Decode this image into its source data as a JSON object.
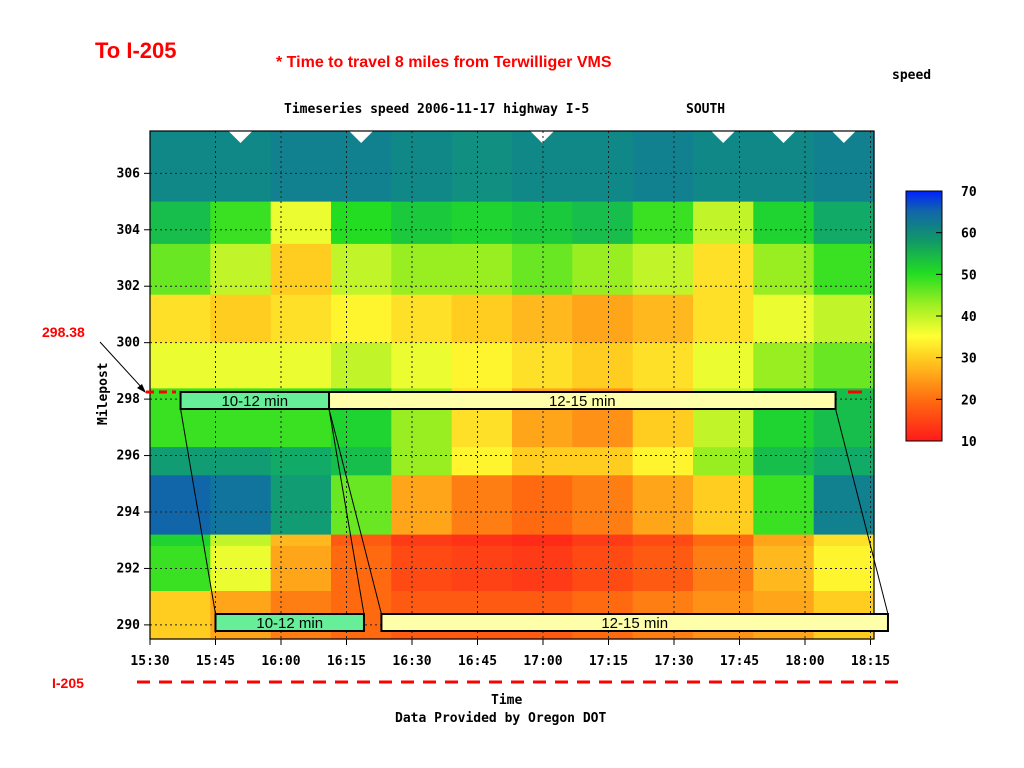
{
  "header": {
    "to_label": "To I-205",
    "note": "* Time to travel 8 miles from Terwilliger VMS",
    "legend_title": "speed"
  },
  "chart_data": {
    "type": "heatmap",
    "title": "Timeseries speed 2006-11-17 highway I-5",
    "direction": "SOUTH",
    "xlabel": "Time",
    "ylabel": "Milepost",
    "footer": "Data Provided by Oregon DOT",
    "x_ticks": [
      "15:30",
      "15:45",
      "16:00",
      "16:15",
      "16:30",
      "16:45",
      "17:00",
      "17:15",
      "17:30",
      "17:45",
      "18:00",
      "18:15"
    ],
    "y_ticks": [
      306,
      304,
      302,
      300,
      298,
      296,
      294,
      292,
      290
    ],
    "xlim": [
      "15:30",
      "18:15"
    ],
    "ylim": [
      289.5,
      307.5
    ],
    "colorbar": {
      "ticks": [
        70,
        60,
        50,
        40,
        30,
        20,
        10
      ],
      "range": [
        10,
        70
      ]
    },
    "grid": true,
    "speed_bands": [
      {
        "mp_from": 305,
        "mp_to": 307.5,
        "speeds": [
          55,
          55,
          56,
          56,
          55,
          54,
          55,
          55,
          56,
          55,
          55,
          56
        ]
      },
      {
        "mp_from": 303.5,
        "mp_to": 305,
        "speeds": [
          48,
          44,
          36,
          45,
          47,
          46,
          47,
          48,
          44,
          38,
          46,
          50
        ]
      },
      {
        "mp_from": 301.7,
        "mp_to": 303.5,
        "speeds": [
          42,
          38,
          30,
          38,
          40,
          40,
          42,
          40,
          38,
          32,
          40,
          44
        ]
      },
      {
        "mp_from": 300,
        "mp_to": 301.7,
        "speeds": [
          32,
          30,
          32,
          34,
          32,
          30,
          28,
          26,
          28,
          32,
          36,
          38
        ]
      },
      {
        "mp_from": 298.38,
        "mp_to": 300,
        "speeds": [
          36,
          36,
          36,
          38,
          36,
          34,
          32,
          30,
          32,
          36,
          40,
          42
        ]
      },
      {
        "mp_from": 296.3,
        "mp_to": 298.38,
        "speeds": [
          44,
          44,
          44,
          46,
          40,
          32,
          26,
          24,
          30,
          38,
          46,
          48
        ]
      },
      {
        "mp_from": 295.3,
        "mp_to": 296.3,
        "speeds": [
          52,
          52,
          50,
          48,
          40,
          34,
          30,
          30,
          34,
          40,
          48,
          50
        ]
      },
      {
        "mp_from": 293.2,
        "mp_to": 295.3,
        "speeds": [
          60,
          58,
          52,
          42,
          26,
          22,
          20,
          22,
          26,
          30,
          44,
          56
        ]
      },
      {
        "mp_from": 292.8,
        "mp_to": 293.2,
        "speeds": [
          46,
          38,
          28,
          18,
          14,
          13,
          12,
          14,
          16,
          20,
          26,
          32
        ]
      },
      {
        "mp_from": 291.2,
        "mp_to": 292.8,
        "speeds": [
          44,
          36,
          26,
          20,
          16,
          15,
          14,
          16,
          18,
          22,
          28,
          34
        ]
      },
      {
        "mp_from": 289.5,
        "mp_to": 291.2,
        "speeds": [
          30,
          26,
          22,
          20,
          18,
          18,
          18,
          20,
          22,
          24,
          26,
          30
        ]
      }
    ],
    "highlight_milepost": "298.38",
    "annotations": [
      {
        "label": "10-12 min",
        "row": "top",
        "start": "15:37",
        "end": "16:11",
        "color": "#66ee99"
      },
      {
        "label": "12-15 min",
        "row": "top",
        "start": "16:11",
        "end": "18:07",
        "color": "#ffffaa"
      },
      {
        "label": "10-12 min",
        "row": "bottom",
        "start": "15:45",
        "end": "16:19",
        "color": "#66ee99"
      },
      {
        "label": "12-15 min",
        "row": "bottom",
        "start": "16:23",
        "end": "18:19",
        "color": "#ffffaa"
      }
    ],
    "boundary_label": "I-205"
  }
}
